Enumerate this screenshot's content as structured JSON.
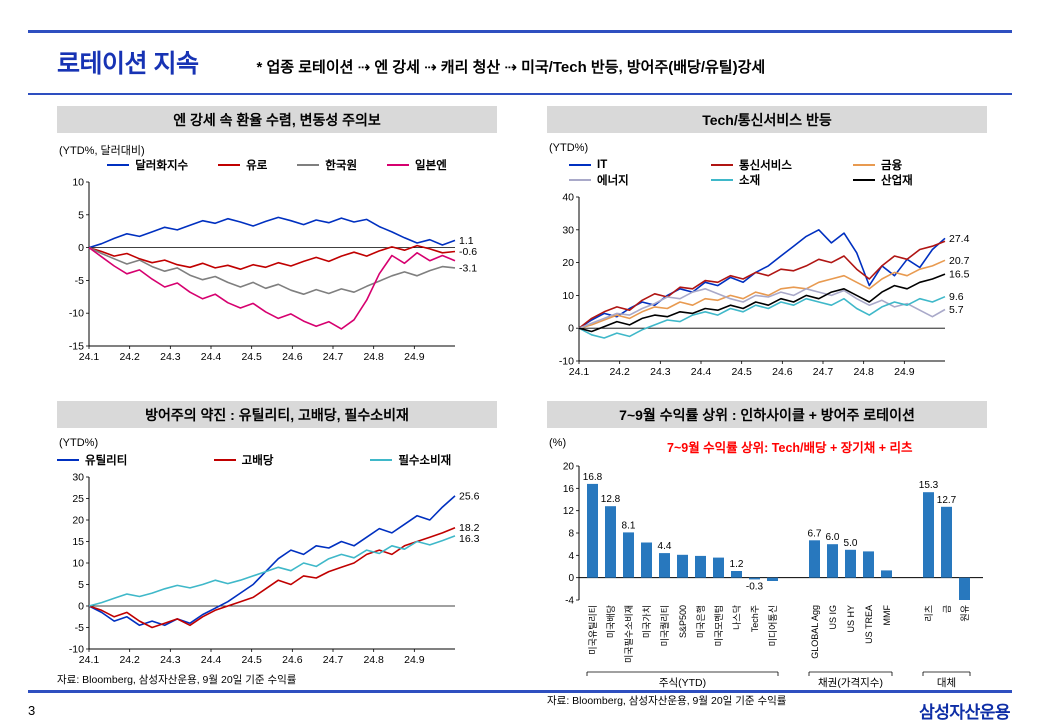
{
  "page": {
    "number": "3",
    "logo": "삼성자산운용"
  },
  "header": {
    "title": "로테이션 지속",
    "subtitle": "* 업종 로테이션 ⇢ 엔 강세 ⇢ 캐리 청산 ⇢ 미국/Tech 반등, 방어주(배당/유틸)강세"
  },
  "colors": {
    "accent_blue": "#1733b4",
    "rule_blue": "#2e4fc0",
    "header_gray": "#d9d9d9",
    "bar_blue": "#2878be",
    "annotation_red": "#ff0000"
  },
  "chart_data": [
    {
      "id": "fx",
      "type": "line",
      "panel_title": "엔 강세 속 환율 수렴, 변동성 주의보",
      "unit_label": "(YTD%, 달러대비)",
      "ylim": [
        -15,
        10
      ],
      "yticks": [
        10,
        5,
        0,
        -5,
        -10,
        -15
      ],
      "xticks": [
        "24.1",
        "24.2",
        "24.3",
        "24.4",
        "24.5",
        "24.6",
        "24.7",
        "24.8",
        "24.9"
      ],
      "legend_rows": [
        [
          0,
          1,
          2,
          3
        ]
      ],
      "legend_item_width": null,
      "series": [
        {
          "name": "달러화지수",
          "color": "#0030c0",
          "end_label": "1.1",
          "values": [
            0,
            0.6,
            1.4,
            2.1,
            1.7,
            2.4,
            3.1,
            2.7,
            3.4,
            4.1,
            3.7,
            4.4,
            3.9,
            3.3,
            4.0,
            4.6,
            4.1,
            3.5,
            4.2,
            3.8,
            4.5,
            3.9,
            4.3,
            3.2,
            2.4,
            1.5,
            0.7,
            1.2,
            0.4,
            1.1
          ]
        },
        {
          "name": "유로",
          "color": "#c00000",
          "end_label": "-0.6",
          "values": [
            0,
            -0.6,
            -1.3,
            -0.9,
            -1.7,
            -2.3,
            -1.9,
            -2.6,
            -3.0,
            -2.4,
            -3.1,
            -2.7,
            -3.3,
            -2.6,
            -3.0,
            -2.3,
            -2.8,
            -2.1,
            -1.5,
            -2.1,
            -1.3,
            -0.7,
            -1.3,
            -0.5,
            0.1,
            -0.4,
            0.3,
            -0.2,
            -0.8,
            -0.6
          ]
        },
        {
          "name": "한국원",
          "color": "#7f7f7f",
          "end_label": "-3.1",
          "values": [
            0,
            -0.9,
            -1.7,
            -2.5,
            -1.9,
            -2.9,
            -3.6,
            -3.1,
            -4.2,
            -4.9,
            -4.4,
            -5.3,
            -6.0,
            -5.3,
            -6.2,
            -5.6,
            -6.5,
            -7.1,
            -6.4,
            -7.0,
            -6.3,
            -6.8,
            -5.9,
            -5.1,
            -4.3,
            -3.7,
            -4.3,
            -3.5,
            -2.9,
            -3.1
          ]
        },
        {
          "name": "일본엔",
          "color": "#d6006f",
          "end_label": null,
          "values": [
            0,
            -1.4,
            -2.8,
            -4.0,
            -3.4,
            -4.8,
            -6.0,
            -5.4,
            -6.8,
            -7.8,
            -7.1,
            -8.4,
            -9.2,
            -8.5,
            -9.8,
            -10.8,
            -10.1,
            -11.2,
            -12.0,
            -11.3,
            -12.4,
            -11.0,
            -8.0,
            -4.0,
            -1.2,
            -2.4,
            -0.8,
            -2.0,
            -1.2,
            -2.0
          ]
        }
      ]
    },
    {
      "id": "sectors",
      "type": "line",
      "panel_title": "Tech/통신서비스 반등",
      "unit_label": "(YTD%)",
      "ylim": [
        -10,
        40
      ],
      "yticks": [
        40,
        30,
        20,
        10,
        0,
        -10
      ],
      "xticks": [
        "24.1",
        "24.2",
        "24.3",
        "24.4",
        "24.5",
        "24.6",
        "24.7",
        "24.8",
        "24.9"
      ],
      "legend_rows": [
        [
          0,
          1,
          2
        ],
        [
          3,
          4,
          5
        ]
      ],
      "legend_item_width": 112,
      "series": [
        {
          "name": "IT",
          "color": "#0030c0",
          "end_label": "27.4",
          "values": [
            0,
            2.5,
            4.5,
            3.5,
            6,
            8,
            7,
            10,
            12,
            11,
            14,
            13,
            15.5,
            14,
            17,
            19,
            22,
            25,
            28,
            30,
            26,
            29,
            23,
            13,
            19,
            16,
            21,
            18.5,
            24,
            27.4
          ]
        },
        {
          "name": "통신서비스",
          "color": "#b01513",
          "end_label": null,
          "values": [
            0,
            3,
            5,
            6.5,
            5.5,
            8.5,
            10.5,
            9.5,
            12.5,
            12,
            14.5,
            14,
            16,
            15,
            17,
            16,
            18,
            17.5,
            19,
            21,
            20,
            22,
            18,
            15,
            19,
            22,
            21,
            24,
            25,
            26.5
          ]
        },
        {
          "name": "금융",
          "color": "#e89a50",
          "end_label": "20.7",
          "values": [
            0,
            1,
            2.5,
            4,
            3,
            5,
            6.5,
            6,
            8,
            7,
            9,
            8.5,
            10,
            9,
            11,
            10,
            12,
            12.5,
            12,
            14,
            15,
            16,
            14,
            12,
            15,
            17,
            16,
            18,
            19,
            20.7
          ]
        },
        {
          "name": "에너지",
          "color": "#a9a9c9",
          "end_label": "5.7",
          "values": [
            0,
            1.5,
            3,
            4.5,
            4,
            6,
            7.5,
            9.5,
            9,
            11,
            12,
            10.5,
            9,
            8,
            10,
            9.5,
            11,
            10,
            12,
            11,
            10,
            11.5,
            9,
            7,
            8.5,
            6.5,
            7.5,
            5.5,
            3.5,
            5.7
          ]
        },
        {
          "name": "소재",
          "color": "#3fb8c9",
          "end_label": "9.6",
          "values": [
            0,
            -2,
            -3,
            -1.5,
            -2.5,
            -0.5,
            1,
            2.5,
            2,
            4,
            5,
            4,
            6,
            5,
            7,
            6,
            8,
            7,
            9,
            8,
            7,
            9,
            6,
            4,
            6.5,
            8,
            7,
            9,
            8,
            9.6
          ]
        },
        {
          "name": "산업재",
          "color": "#000000",
          "end_label": "16.5",
          "values": [
            0,
            -1,
            0.5,
            2,
            1,
            3,
            4,
            3.5,
            5,
            4.5,
            6,
            5.5,
            7,
            6,
            8,
            7,
            9,
            8,
            10,
            9,
            11,
            12,
            10,
            8,
            11,
            13,
            12,
            14,
            15,
            16.5
          ]
        }
      ]
    },
    {
      "id": "defensives",
      "type": "line",
      "panel_title": "방어주의 약진 : 유틸리티, 고배당, 필수소비재",
      "unit_label": "(YTD%)",
      "ylim": [
        -10,
        30
      ],
      "yticks": [
        30,
        25,
        20,
        15,
        10,
        5,
        0,
        -5,
        -10
      ],
      "xticks": [
        "24.1",
        "24.2",
        "24.3",
        "24.4",
        "24.5",
        "24.6",
        "24.7",
        "24.8",
        "24.9"
      ],
      "legend_rows": [
        [
          0,
          1,
          2
        ]
      ],
      "legend_item_width": 130,
      "footnote": "자료: Bloomberg, 삼성자산운용, 9월 20일 기준 수익률",
      "series": [
        {
          "name": "유틸리티",
          "color": "#0030c0",
          "end_label": "25.6",
          "values": [
            0,
            -1.5,
            -3.5,
            -2.5,
            -4.5,
            -3.5,
            -4.5,
            -3,
            -4,
            -2,
            -0.5,
            1,
            3,
            5,
            8,
            11,
            13,
            12,
            14,
            13.5,
            15,
            14,
            16,
            18,
            17,
            19,
            21,
            20,
            23,
            25.6
          ]
        },
        {
          "name": "고배당",
          "color": "#c00000",
          "end_label": "18.2",
          "values": [
            0,
            -1,
            -2.5,
            -1.5,
            -3.5,
            -5,
            -4,
            -3,
            -4.5,
            -2.5,
            -1,
            0,
            1,
            2,
            4,
            6,
            5,
            7,
            6.5,
            8,
            9,
            10,
            12,
            13,
            12,
            14,
            15,
            16,
            17,
            18.2
          ]
        },
        {
          "name": "필수소비재",
          "color": "#3fb8c9",
          "end_label": "16.3",
          "values": [
            0,
            0.8,
            1.8,
            2.8,
            2.2,
            3,
            4,
            4.8,
            4.2,
            5,
            6,
            5.2,
            6,
            7,
            8,
            9,
            8.2,
            10,
            9.2,
            11,
            12,
            11.2,
            13,
            12.2,
            14,
            13.2,
            15,
            14.2,
            15.2,
            16.3
          ]
        }
      ]
    },
    {
      "id": "returns",
      "type": "bar",
      "panel_title": "7~9월 수익률 상위 : 인하사이클 + 방어주 로테이션",
      "unit_label": "(%)",
      "annotation": "7~9월 수익률 상위: Tech/배당 + 장기채 + 리츠",
      "annotation_color": "#ff0000",
      "bar_color": "#2878be",
      "ylim": [
        -4,
        20
      ],
      "yticks": [
        20,
        16,
        12,
        8,
        4,
        0,
        -4
      ],
      "footnote": "자료: Bloomberg, 삼성자산운용, 9월 20일 기준 수익률",
      "groups": [
        {
          "label": "주식(YTD)",
          "bars": [
            {
              "category": "미국유틸리티",
              "value": 16.8,
              "label": "16.8"
            },
            {
              "category": "미국배당",
              "value": 12.8,
              "label": "12.8"
            },
            {
              "category": "미국필수소비재",
              "value": 8.1,
              "label": "8.1"
            },
            {
              "category": "미국가치",
              "value": 6.3,
              "label": null
            },
            {
              "category": "미국퀄리티",
              "value": 4.4,
              "label": "4.4"
            },
            {
              "category": "S&P500",
              "value": 4.1,
              "label": null
            },
            {
              "category": "미국은행",
              "value": 3.9,
              "label": null
            },
            {
              "category": "미국모멘텀",
              "value": 3.6,
              "label": null
            },
            {
              "category": "나스닥",
              "value": 1.2,
              "label": "1.2"
            },
            {
              "category": "Tech주",
              "value": -0.3,
              "label": "-0.3"
            },
            {
              "category": "미디어통신",
              "value": -0.6,
              "label": null
            }
          ]
        },
        {
          "label": "채권(가격지수)",
          "bars": [
            {
              "category": "GLOBAL Agg",
              "value": 6.7,
              "label": "6.7"
            },
            {
              "category": "US IG",
              "value": 6.0,
              "label": "6.0"
            },
            {
              "category": "US HY",
              "value": 5.0,
              "label": "5.0"
            },
            {
              "category": "US TREA",
              "value": 4.7,
              "label": null
            },
            {
              "category": "MMF",
              "value": 1.3,
              "label": null
            }
          ]
        },
        {
          "label": "대체",
          "bars": [
            {
              "category": "리츠",
              "value": 15.3,
              "label": "15.3"
            },
            {
              "category": "금",
              "value": 12.7,
              "label": "12.7"
            },
            {
              "category": "원유",
              "value": -4.0,
              "label": null
            }
          ]
        }
      ]
    }
  ]
}
